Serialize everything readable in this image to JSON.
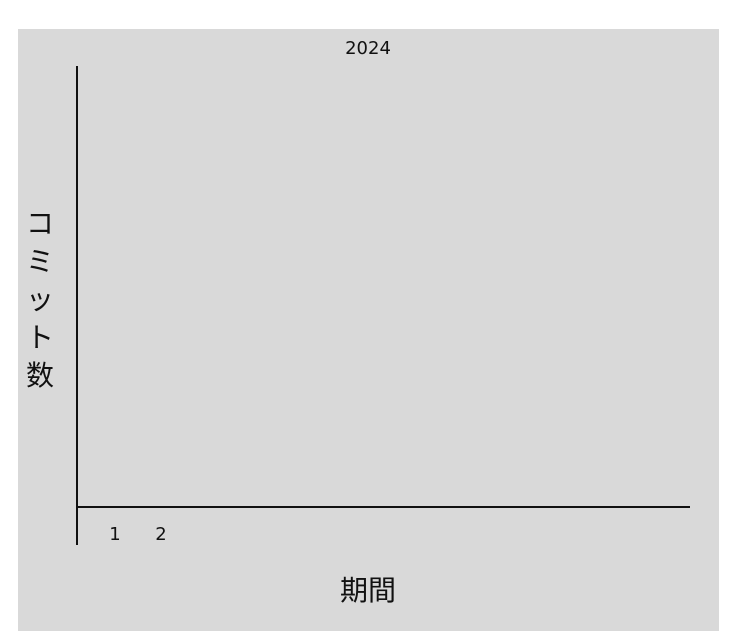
{
  "chart_data": {
    "type": "bar",
    "title": "2024",
    "xlabel": "期間",
    "ylabel": "コミット数",
    "categories": [
      "1",
      "2"
    ],
    "series": [
      {
        "values": [
          0,
          0
        ]
      }
    ],
    "grid": false,
    "background": "#d9d9d9",
    "axis_color": "#111111"
  }
}
